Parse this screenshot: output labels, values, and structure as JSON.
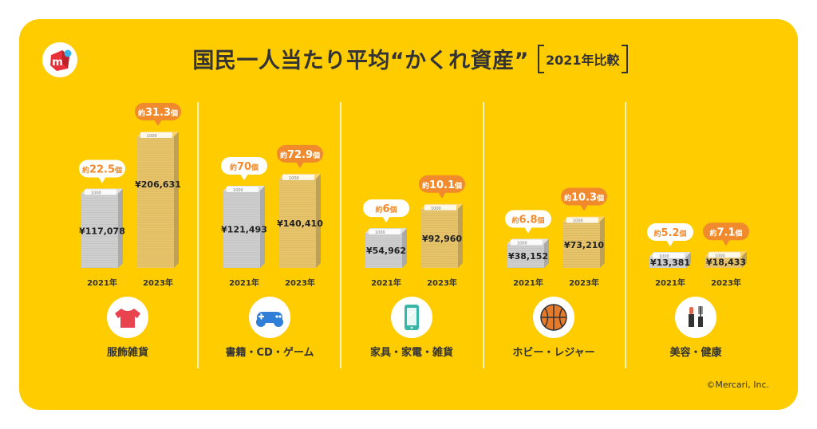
{
  "title": "国民一人当たり平均“かくれ資産”",
  "subtitle": "2021年比較",
  "copyright": "©Mercari, Inc.",
  "colors": {
    "background": "#FFCC00",
    "bar_2021": "#CFCFCF",
    "bar_2023": "#E8C46A",
    "callout_2021": "#FFFFFF",
    "callout_2023": "#F08A2C",
    "accent_text": "#F08A2C",
    "divider": "#FFFFFF"
  },
  "chart_data": {
    "type": "bar",
    "categories": [
      "服飾雑貨",
      "書籍・CD・ゲーム",
      "家具・家電・雑貨",
      "ホビー・レジャー",
      "美容・健康"
    ],
    "category_icons": [
      "tshirt-icon",
      "gamepad-icon",
      "smartphone-icon",
      "basketball-icon",
      "cosmetics-icon"
    ],
    "years": [
      "2021年",
      "2023年"
    ],
    "series": [
      {
        "year": "2021年",
        "values": [
          117078,
          121493,
          54962,
          38152,
          13381
        ],
        "value_labels": [
          "¥117,078",
          "¥121,493",
          "¥54,962",
          "¥38,152",
          "¥13,381"
        ],
        "counts": [
          "22.5",
          "70",
          "6",
          "6.8",
          "5.2"
        ]
      },
      {
        "year": "2023年",
        "values": [
          206631,
          140410,
          92960,
          73210,
          18433
        ],
        "value_labels": [
          "¥206,631",
          "¥140,410",
          "¥92,960",
          "¥73,210",
          "¥18,433"
        ],
        "counts": [
          "31.3",
          "72.9",
          "10.1",
          "10.3",
          "7.1"
        ]
      }
    ],
    "count_prefix": "約",
    "count_suffix": "個",
    "bill_label": "1000"
  }
}
